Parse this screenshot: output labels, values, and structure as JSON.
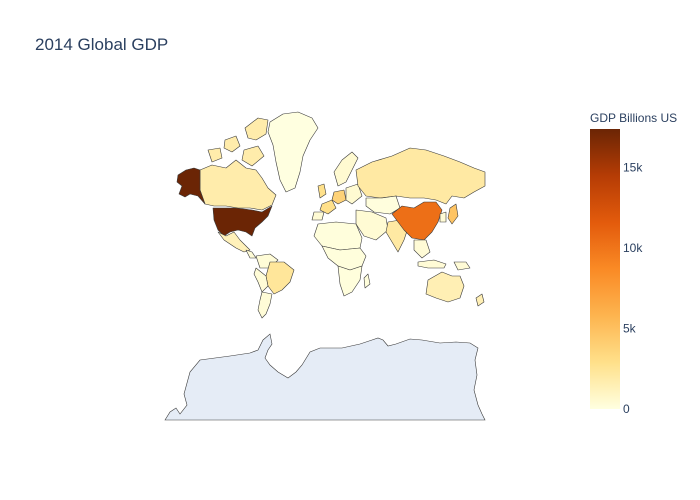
{
  "title": "2014 Global GDP",
  "colorbar": {
    "title": "GDP Billions US",
    "min": 0,
    "max": 17400,
    "ticks": [
      {
        "value": 0,
        "label": "0"
      },
      {
        "value": 5000,
        "label": "5k"
      },
      {
        "value": 10000,
        "label": "10k"
      },
      {
        "value": 15000,
        "label": "15k"
      }
    ],
    "colorscale": [
      "#ffffe0",
      "#ffe08a",
      "#fdb44f",
      "#fa8a25",
      "#e35b0c",
      "#b53c05",
      "#6b2505"
    ]
  },
  "map": {
    "projection": "mercator",
    "unmatched_land_color": "#e5ecf6",
    "border_color": "#3a3a3a",
    "country_values": [
      {
        "region": "United States",
        "gdp": 17420
      },
      {
        "region": "Alaska",
        "gdp": 17420
      },
      {
        "region": "China",
        "gdp": 10360
      },
      {
        "region": "Japan",
        "gdp": 4770
      },
      {
        "region": "Germany",
        "gdp": 3820
      },
      {
        "region": "France",
        "gdp": 2900
      },
      {
        "region": "United Kingdom",
        "gdp": 2850
      },
      {
        "region": "Brazil",
        "gdp": 2350
      },
      {
        "region": "India",
        "gdp": 2050
      },
      {
        "region": "Russia",
        "gdp": 2060
      },
      {
        "region": "Canada",
        "gdp": 1790
      },
      {
        "region": "Australia",
        "gdp": 1480
      },
      {
        "region": "Mexico",
        "gdp": 1290
      },
      {
        "region": "Greenland",
        "gdp": 2
      },
      {
        "region": "Africa",
        "gdp": 120
      },
      {
        "region": "South America",
        "gdp": 300
      },
      {
        "region": "Middle East",
        "gdp": 400
      },
      {
        "region": "Scandinavia",
        "gdp": 500
      },
      {
        "region": "Southeast Asia",
        "gdp": 350
      },
      {
        "region": "Central Asia",
        "gdp": 100
      }
    ]
  }
}
